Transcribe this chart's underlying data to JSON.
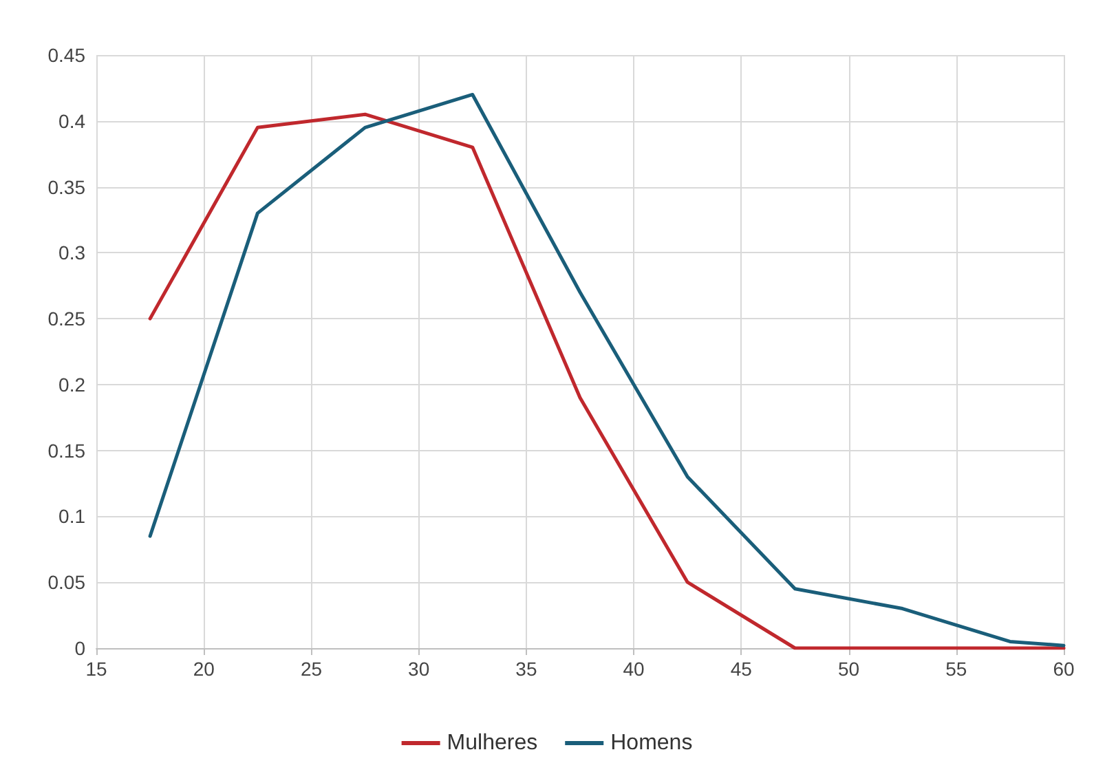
{
  "chart_data": {
    "type": "line",
    "x": [
      17.5,
      22.5,
      27.5,
      32.5,
      37.5,
      42.5,
      47.5,
      52.5,
      57.5,
      60
    ],
    "series": [
      {
        "name": "Mulheres",
        "color": "#c0282d",
        "values": [
          0.25,
          0.395,
          0.405,
          0.38,
          0.19,
          0.05,
          0,
          0,
          0,
          0
        ]
      },
      {
        "name": "Homens",
        "color": "#1a5e7a",
        "values": [
          0.085,
          0.33,
          0.395,
          0.42,
          0.27,
          0.13,
          0.045,
          0.03,
          0.005,
          0.002
        ]
      }
    ],
    "xlim": [
      15,
      60
    ],
    "xticks": [
      15,
      20,
      25,
      30,
      35,
      40,
      45,
      50,
      55,
      60
    ],
    "ylim": [
      0,
      0.45
    ],
    "yticks": [
      0,
      0.05,
      0.1,
      0.15,
      0.2,
      0.25,
      0.3,
      0.35,
      0.4,
      0.45
    ],
    "grid": true,
    "legend": "bottom",
    "marker": "none",
    "line_style": "solid"
  }
}
